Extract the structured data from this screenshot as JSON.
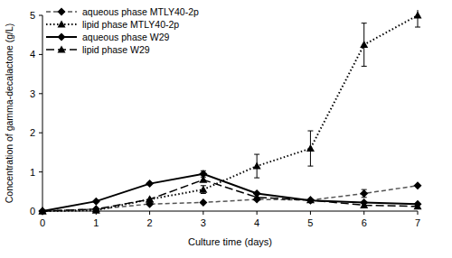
{
  "chart_data": {
    "type": "line",
    "x_label": "Culture time (days)",
    "y_label": "Concentration of gamma-decalactone (g/L)",
    "x": [
      0,
      1,
      2,
      3,
      4,
      5,
      6,
      7
    ],
    "xlim": [
      0,
      7
    ],
    "xticks": [
      0,
      1,
      2,
      3,
      4,
      5,
      6,
      7
    ],
    "ylim": [
      0,
      5
    ],
    "yticks": [
      0,
      1,
      2,
      3,
      4,
      5
    ],
    "grid": false,
    "legend": "top-left",
    "series": [
      {
        "name": "aqueous phase MTLY40-2p",
        "color": "#000000",
        "marker": "diamond",
        "line_style": "dashed",
        "values": [
          0,
          0.05,
          0.18,
          0.22,
          0.3,
          0.28,
          0.45,
          0.65
        ],
        "errors": [
          null,
          null,
          null,
          null,
          null,
          null,
          0.1,
          null
        ]
      },
      {
        "name": "lipid phase MTLY40-2p",
        "color": "#000000",
        "marker": "triangle",
        "line_style": "dotted",
        "values": [
          0,
          0.02,
          0.3,
          0.55,
          1.15,
          1.6,
          4.25,
          5.0
        ],
        "errors": [
          null,
          null,
          null,
          0.1,
          0.3,
          0.45,
          0.55,
          0.3
        ]
      },
      {
        "name": "aqueous phase W29",
        "color": "#000000",
        "marker": "diamond",
        "line_style": "solid",
        "values": [
          0,
          0.25,
          0.7,
          0.95,
          0.45,
          0.27,
          0.22,
          0.18
        ],
        "errors": [
          null,
          null,
          null,
          0.08,
          null,
          null,
          null,
          null
        ]
      },
      {
        "name": "lipid phase W29",
        "color": "#000000",
        "marker": "triangle",
        "line_style": "longdash",
        "values": [
          0,
          0.05,
          0.3,
          0.8,
          0.35,
          0.28,
          0.15,
          0.12
        ],
        "errors": [
          null,
          null,
          null,
          null,
          null,
          null,
          null,
          null
        ]
      }
    ]
  }
}
